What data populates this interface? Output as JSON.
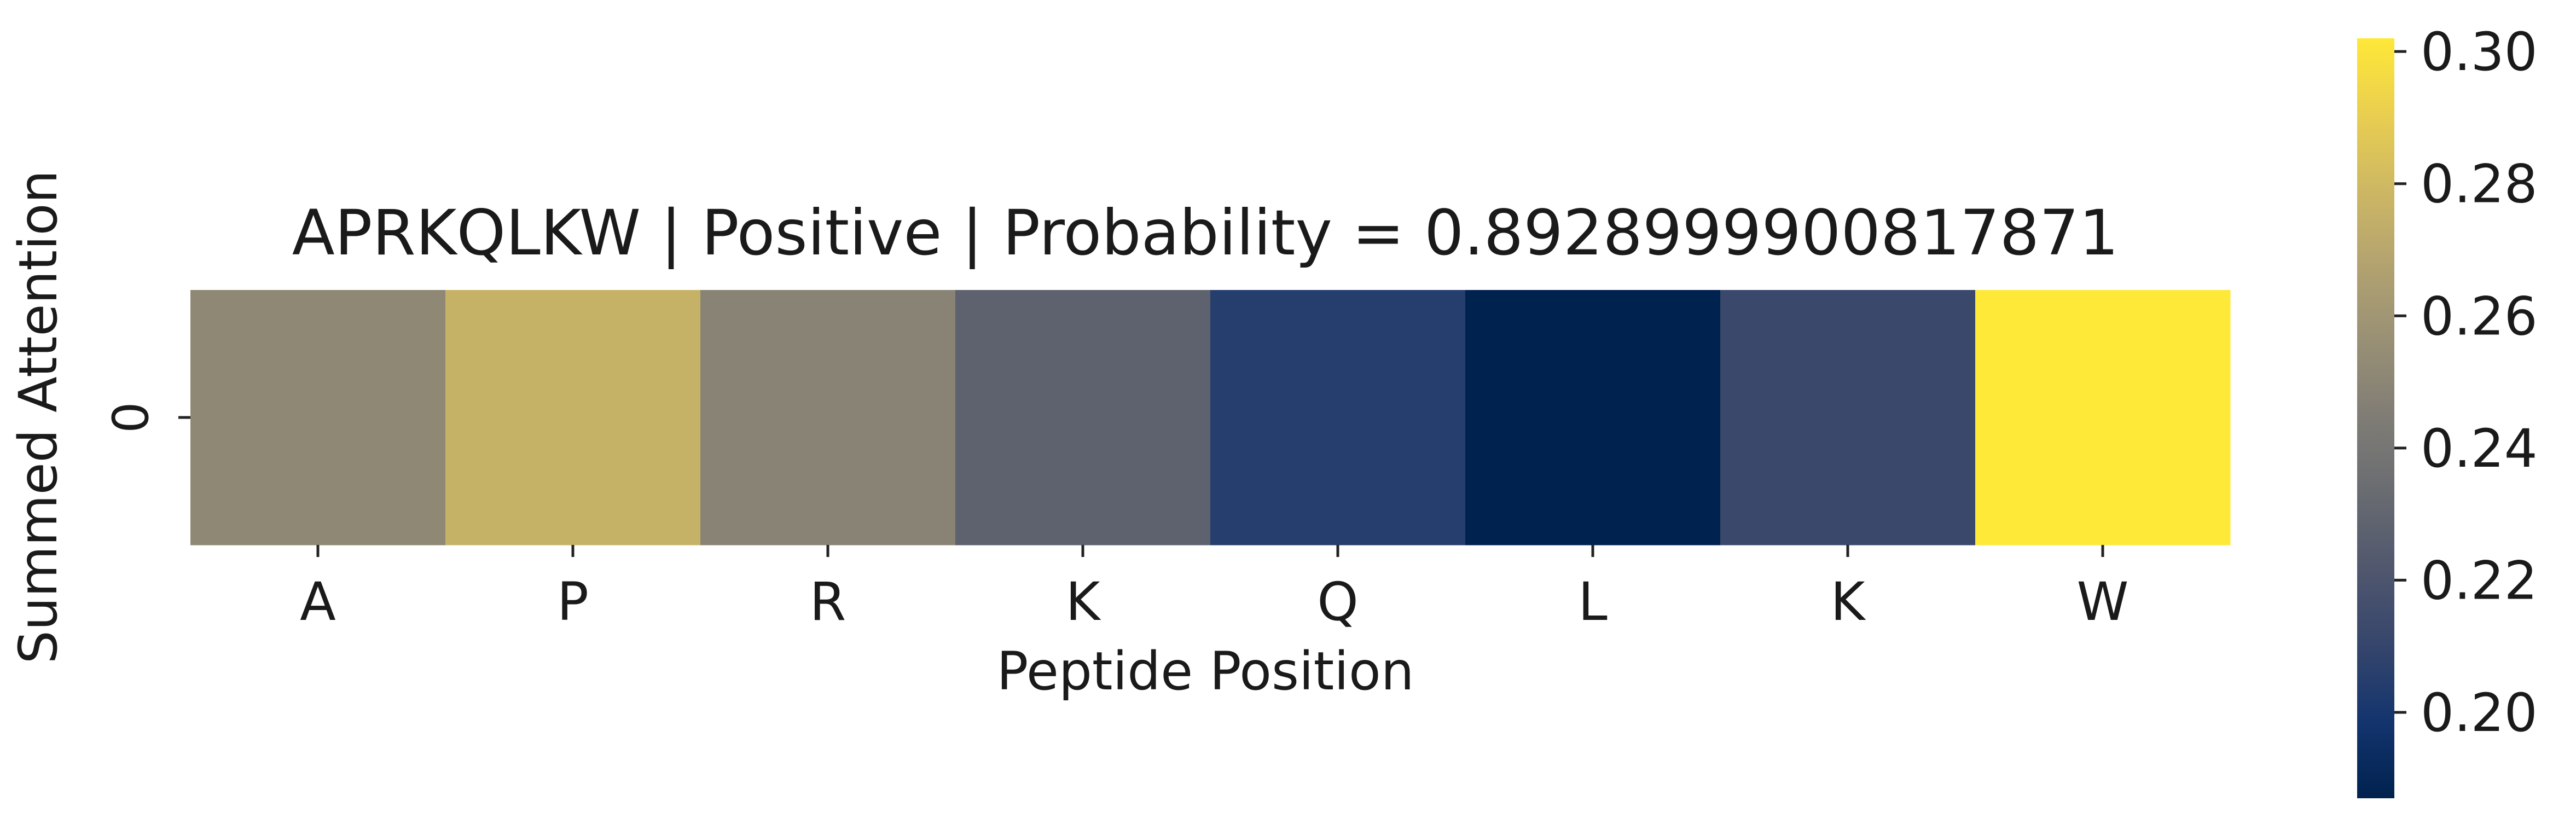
{
  "chart_data": {
    "type": "heatmap",
    "title": "APRKQLKW | Positive | Probability = 0.8928999900817871",
    "xlabel": "Peptide Position",
    "ylabel": "Summed Attention",
    "x_categories": [
      "A",
      "P",
      "R",
      "K",
      "Q",
      "L",
      "K",
      "W"
    ],
    "y_categories": [
      "0"
    ],
    "values": [
      [
        0.252,
        0.276,
        0.249,
        0.228,
        0.205,
        0.187,
        0.212,
        0.302
      ]
    ],
    "colormap": "cividis",
    "colorbar": {
      "range": [
        0.187,
        0.302
      ],
      "ticks": [
        0.2,
        0.22,
        0.24,
        0.26,
        0.28,
        0.3
      ],
      "tick_labels": [
        "0.20",
        "0.22",
        "0.24",
        "0.26",
        "0.28",
        "0.30"
      ]
    }
  }
}
